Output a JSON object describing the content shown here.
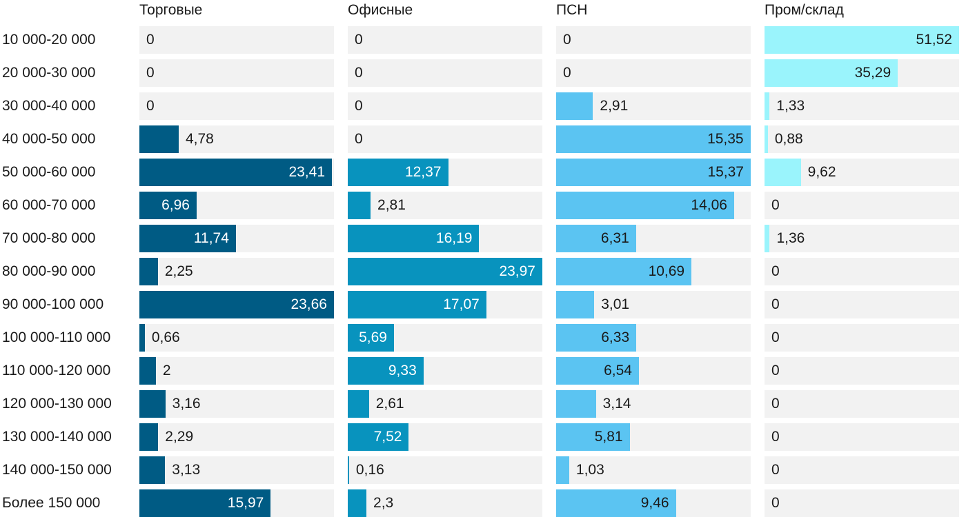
{
  "chart_data": {
    "type": "bar",
    "orientation": "horizontal",
    "layout": "small-multiples",
    "categories": [
      "10 000-20 000",
      "20 000-30 000",
      "30 000-40 000",
      "40 000-50 000",
      "50 000-60 000",
      "60 000-70 000",
      "70 000-80 000",
      "80 000-90 000",
      "90 000-100 000",
      "100 000-110 000",
      "110 000-120 000",
      "120 000-130 000",
      "130 000-140 000",
      "140 000-150 000",
      "Более 150 000"
    ],
    "series": [
      {
        "name": "Торговые",
        "color": "#005b84",
        "text_inside": "#ffffff",
        "values": [
          0,
          0,
          0,
          4.78,
          23.41,
          6.96,
          11.74,
          2.25,
          23.66,
          0.66,
          2,
          3.16,
          2.29,
          3.13,
          15.97
        ],
        "labels": [
          "0",
          "0",
          "0",
          "4,78",
          "23,41",
          "6,96",
          "11,74",
          "2,25",
          "23,66",
          "0,66",
          "2",
          "3,16",
          "2,29",
          "3,13",
          "15,97"
        ],
        "xlim": [
          0,
          23.66
        ]
      },
      {
        "name": "Офисные",
        "color": "#0893be",
        "text_inside": "#ffffff",
        "values": [
          0,
          0,
          0,
          0,
          12.37,
          2.81,
          16.19,
          23.97,
          17.07,
          5.69,
          9.33,
          2.61,
          7.52,
          0.16,
          2.3
        ],
        "labels": [
          "0",
          "0",
          "0",
          "0",
          "12,37",
          "2,81",
          "16,19",
          "23,97",
          "17,07",
          "5,69",
          "9,33",
          "2,61",
          "7,52",
          "0,16",
          "2,3"
        ],
        "xlim": [
          0,
          23.97
        ]
      },
      {
        "name": "ПСН",
        "color": "#5bc4f2",
        "text_inside": "#1a1a1a",
        "values": [
          0,
          0,
          2.91,
          15.35,
          15.37,
          14.06,
          6.31,
          10.69,
          3.01,
          6.33,
          6.54,
          3.14,
          5.81,
          1.03,
          9.46
        ],
        "labels": [
          "0",
          "0",
          "2,91",
          "15,35",
          "15,37",
          "14,06",
          "6,31",
          "10,69",
          "3,01",
          "6,33",
          "6,54",
          "3,14",
          "5,81",
          "1,03",
          "9,46"
        ],
        "xlim": [
          0,
          15.37
        ]
      },
      {
        "name": "Пром/склад",
        "color": "#9af4fc",
        "text_inside": "#1a1a1a",
        "values": [
          51.52,
          35.29,
          1.33,
          0.88,
          9.62,
          0,
          1.36,
          0,
          0,
          0,
          0,
          0,
          0,
          0,
          0
        ],
        "labels": [
          "51,52",
          "35,29",
          "1,33",
          "0,88",
          "9,62",
          "0",
          "1,36",
          "0",
          "0",
          "0",
          "0",
          "0",
          "0",
          "0",
          "0"
        ],
        "xlim": [
          0,
          51.52
        ]
      }
    ],
    "title": "",
    "xlabel": "",
    "ylabel": "",
    "grid": false,
    "legend": "none"
  }
}
